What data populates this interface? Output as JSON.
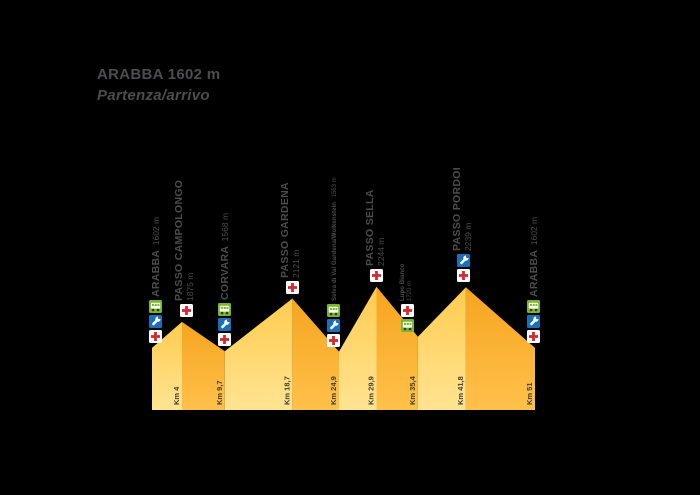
{
  "title": {
    "name": "ARABBA",
    "altitude": "1602 m",
    "subtitle": "Partenza/arrivo"
  },
  "colors": {
    "background": "#000000",
    "label_text": "#4d4d4f",
    "km_text": "#413c30",
    "ascent_top": "#ffcb4e",
    "ascent_bottom": "#ffe492",
    "descent_top": "#f6a41f",
    "descent_bottom": "#ffc14a",
    "cross_red": "#d7282f",
    "wrench_blue": "#1a6fb7",
    "bus_green": "#79b829",
    "icon_white": "#ffffff",
    "wheel_dark": "#333333"
  },
  "icons": {
    "cross": "first-aid-cross-icon",
    "wrench": "mechanic-wrench-icon",
    "bus": "shuttle-bus-icon"
  },
  "chart_data": {
    "type": "area",
    "title": "ARABBA 1602 m",
    "subtitle": "Partenza/arrivo",
    "xlabel": "Km",
    "ylabel": "m",
    "x_range_km": [
      0,
      51
    ],
    "y_range_m": [
      950,
      2300
    ],
    "legend_position": "none",
    "grid": false,
    "points": [
      {
        "km": 0,
        "elev": 1602,
        "name": "ARABBA",
        "altitude": "1602 m",
        "label_style": "large",
        "lines": 1,
        "services": [
          "bus",
          "wrench",
          "cross"
        ],
        "km_label": null
      },
      {
        "km": 4,
        "elev": 1875,
        "name": "PASSO CAMPOLONGO",
        "altitude": "1875 m",
        "label_style": "large",
        "lines": 2,
        "services": [
          "cross"
        ],
        "km_label": "Km 4"
      },
      {
        "km": 9.7,
        "elev": 1568,
        "name": "CORVARA",
        "altitude": "1568 m",
        "label_style": "large",
        "lines": 1,
        "services": [
          "bus",
          "wrench",
          "cross"
        ],
        "km_label": "Km 9,7"
      },
      {
        "km": 18.7,
        "elev": 2121,
        "name": "PASSO GARDENA",
        "altitude": "2121 m",
        "label_style": "large",
        "lines": 2,
        "services": [
          "cross"
        ],
        "km_label": "Km 18,7"
      },
      {
        "km": 24.9,
        "elev": 1563,
        "name": "Selva di Val Gardena/Wolkenstein",
        "altitude": "1563 m",
        "label_style": "small",
        "lines": 1,
        "services": [
          "bus",
          "wrench",
          "cross"
        ],
        "km_label": "Km 24,9"
      },
      {
        "km": 29.9,
        "elev": 2244,
        "name": "PASSO SELLA",
        "altitude": "2244 m",
        "label_style": "large",
        "lines": 2,
        "services": [
          "cross"
        ],
        "km_label": "Km 29,9"
      },
      {
        "km": 35.4,
        "elev": 1720,
        "name": "Lupo Bianco",
        "altitude": "1720 m",
        "label_style": "small",
        "lines": 2,
        "services": [
          "cross",
          "bus"
        ],
        "km_label": "Km 35,4"
      },
      {
        "km": 41.8,
        "elev": 2239,
        "name": "PASSO PORDOI",
        "altitude": "2239 m",
        "label_style": "large",
        "lines": 2,
        "services": [
          "wrench",
          "cross"
        ],
        "km_label": "Km 41,8"
      },
      {
        "km": 51,
        "elev": 1602,
        "name": "ARABBA",
        "altitude": "1602 m",
        "label_style": "large",
        "lines": 1,
        "services": [
          "bus",
          "wrench",
          "cross"
        ],
        "km_label": "Km 51"
      }
    ]
  }
}
